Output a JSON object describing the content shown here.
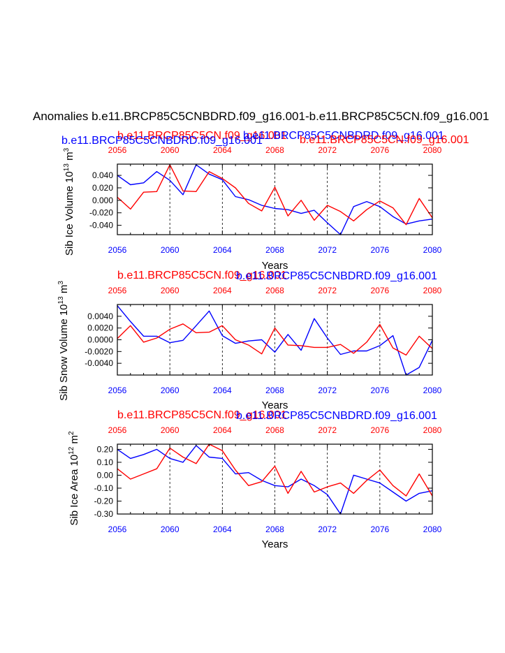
{
  "figure": {
    "main_title": "Anomalies b.e11.BRCP85C5CNBDRD.f09_g16.001-b.e11.BRCP85C5CN.f09_g16.001",
    "run_blue": "b.e11.BRCP85C5CNBDRD.f09_g16.001",
    "run_red": "b.e11.BRCP85C5CN.f09_g16.001",
    "colors": {
      "blue": "#0000ff",
      "red": "#ff0000",
      "axis": "#000000",
      "grid": "#000000"
    }
  },
  "chart_data": [
    {
      "type": "line",
      "ylabel": "Sib Ice Volume",
      "yunit_base": "10",
      "yunit_exp": "13",
      "yunit_tail": "m",
      "yunit_tail_exp": "3",
      "xlabel": "Years",
      "xlim": [
        2056,
        2080
      ],
      "ylim": [
        -0.055,
        0.058
      ],
      "xticks": [
        2056,
        2060,
        2064,
        2068,
        2072,
        2076,
        2080
      ],
      "xtick_labels": [
        "2056",
        "2060",
        "2064",
        "2068",
        "2072",
        "2076",
        "2080"
      ],
      "yticks": [
        0.04,
        0.02,
        0.0,
        -0.02,
        -0.04
      ],
      "ytick_labels": [
        "0.040",
        "0.020",
        "0.000",
        "-0.020",
        "-0.040"
      ],
      "x": [
        2056,
        2057,
        2058,
        2059,
        2060,
        2061,
        2062,
        2063,
        2064,
        2065,
        2066,
        2067,
        2068,
        2069,
        2070,
        2071,
        2072,
        2073,
        2074,
        2075,
        2076,
        2077,
        2078,
        2079,
        2080
      ],
      "series": [
        {
          "name": "b.e11.BRCP85C5CNBDRD.f09_g16.001",
          "color": "#0000ff",
          "values": [
            0.04,
            0.025,
            0.028,
            0.046,
            0.032,
            0.009,
            0.057,
            0.042,
            0.033,
            0.006,
            0.001,
            -0.008,
            -0.013,
            -0.015,
            -0.021,
            -0.016,
            -0.036,
            -0.055,
            -0.01,
            -0.002,
            -0.01,
            -0.026,
            -0.038,
            -0.033,
            -0.03
          ]
        },
        {
          "name": "b.e11.BRCP85C5CN.f09_g16.001",
          "color": "#ff0000",
          "values": [
            0.005,
            -0.014,
            0.013,
            0.014,
            0.057,
            0.015,
            0.014,
            0.046,
            0.035,
            0.02,
            -0.005,
            -0.017,
            0.021,
            -0.025,
            0.0,
            -0.032,
            -0.008,
            -0.018,
            -0.033,
            -0.015,
            -0.001,
            -0.012,
            -0.039,
            0.003,
            -0.028
          ]
        }
      ]
    },
    {
      "type": "line",
      "ylabel": "Sib Snow Volume",
      "yunit_base": "10",
      "yunit_exp": "13",
      "yunit_tail": "m",
      "yunit_tail_exp": "3",
      "xlabel": "Years",
      "xlim": [
        2056,
        2080
      ],
      "ylim": [
        -0.006,
        0.006
      ],
      "xticks": [
        2056,
        2060,
        2064,
        2068,
        2072,
        2076,
        2080
      ],
      "xtick_labels": [
        "2056",
        "2060",
        "2064",
        "2068",
        "2072",
        "2076",
        "2080"
      ],
      "yticks": [
        0.004,
        0.002,
        0.0,
        -0.002,
        -0.004
      ],
      "ytick_labels": [
        "0.0040",
        "0.0020",
        "0.0000",
        "-0.0020",
        "-0.0040"
      ],
      "x": [
        2056,
        2057,
        2058,
        2059,
        2060,
        2061,
        2062,
        2063,
        2064,
        2065,
        2066,
        2067,
        2068,
        2069,
        2070,
        2071,
        2072,
        2073,
        2074,
        2075,
        2076,
        2077,
        2078,
        2079,
        2080
      ],
      "series": [
        {
          "name": "b.e11.BRCP85C5CNBDRD.f09_g16.001",
          "color": "#0000ff",
          "values": [
            0.0058,
            0.0031,
            0.0006,
            0.0006,
            -0.0005,
            -0.0001,
            0.0024,
            0.0049,
            0.0007,
            -0.0006,
            -0.0002,
            0.0,
            -0.0021,
            0.0009,
            -0.0018,
            0.0036,
            0.0003,
            -0.0025,
            -0.0019,
            -0.0019,
            -0.001,
            0.0007,
            -0.006,
            -0.0047,
            -0.0001
          ]
        },
        {
          "name": "b.e11.BRCP85C5CN.f09_g16.001",
          "color": "#ff0000",
          "values": [
            0.0002,
            0.0024,
            -0.0004,
            0.0003,
            0.0018,
            0.0027,
            0.0012,
            0.0013,
            0.0024,
            0.0,
            -0.0009,
            -0.0024,
            0.002,
            -0.0009,
            -0.001,
            -0.0013,
            -0.0013,
            -0.0008,
            -0.0023,
            -0.0004,
            0.0026,
            -0.0014,
            -0.0026,
            0.0006,
            -0.0015
          ]
        }
      ]
    },
    {
      "type": "line",
      "ylabel": "Sib Ice Area",
      "yunit_base": "10",
      "yunit_exp": "12",
      "yunit_tail": "m",
      "yunit_tail_exp": "2",
      "xlabel": "Years",
      "xlim": [
        2056,
        2080
      ],
      "ylim": [
        -0.3,
        0.24
      ],
      "xticks": [
        2056,
        2060,
        2064,
        2068,
        2072,
        2076,
        2080
      ],
      "xtick_labels": [
        "2056",
        "2060",
        "2064",
        "2068",
        "2072",
        "2076",
        "2080"
      ],
      "yticks": [
        0.2,
        0.1,
        0.0,
        -0.1,
        -0.2,
        -0.3
      ],
      "ytick_labels": [
        "0.20",
        "0.10",
        "0.00",
        "-0.10",
        "-0.20",
        "-0.30"
      ],
      "x": [
        2056,
        2057,
        2058,
        2059,
        2060,
        2061,
        2062,
        2063,
        2064,
        2065,
        2066,
        2067,
        2068,
        2069,
        2070,
        2071,
        2072,
        2073,
        2074,
        2075,
        2076,
        2077,
        2078,
        2079,
        2080
      ],
      "series": [
        {
          "name": "b.e11.BRCP85C5CNBDRD.f09_g16.001",
          "color": "#0000ff",
          "values": [
            0.2,
            0.13,
            0.16,
            0.2,
            0.13,
            0.1,
            0.23,
            0.14,
            0.13,
            0.01,
            0.02,
            -0.04,
            -0.08,
            -0.09,
            -0.03,
            -0.08,
            -0.15,
            -0.3,
            0.0,
            -0.03,
            -0.06,
            -0.13,
            -0.2,
            -0.14,
            -0.12
          ]
        },
        {
          "name": "b.e11.BRCP85C5CN.f09_g16.001",
          "color": "#ff0000",
          "values": [
            0.05,
            -0.03,
            0.01,
            0.05,
            0.21,
            0.14,
            0.09,
            0.24,
            0.19,
            0.04,
            -0.08,
            -0.05,
            0.07,
            -0.14,
            0.03,
            -0.13,
            -0.09,
            -0.06,
            -0.14,
            -0.04,
            0.04,
            -0.08,
            -0.16,
            0.01,
            -0.16
          ]
        }
      ]
    }
  ]
}
